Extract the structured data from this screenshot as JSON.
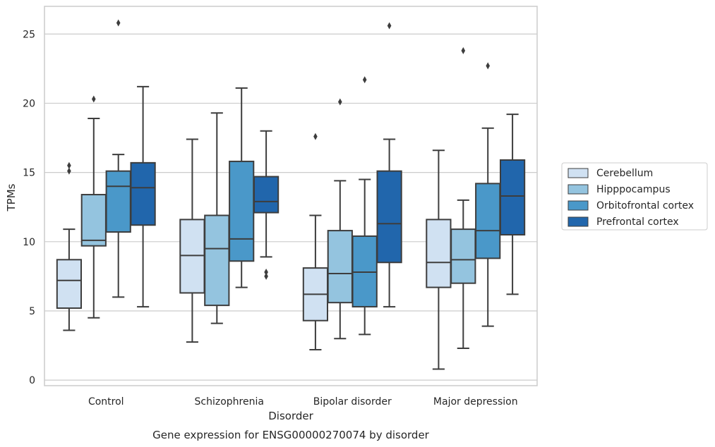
{
  "chart_data": {
    "type": "box",
    "caption": "Gene expression for ENSG00000270074 by disorder",
    "xlabel": "Disorder",
    "ylabel": "TPMs",
    "ylim": [
      -0.4,
      27
    ],
    "yticks": [
      0,
      5,
      10,
      15,
      20,
      25
    ],
    "grid": "horizontal",
    "legend_position": "right",
    "categories": [
      "Control",
      "Schizophrenia",
      "Bipolar disorder",
      "Major depression"
    ],
    "series": [
      {
        "name": "Cerebellum",
        "color": "#d0e1f2",
        "boxes": [
          {
            "whislo": 3.6,
            "q1": 5.2,
            "med": 7.2,
            "q3": 8.7,
            "whishi": 10.9,
            "fliers": [
              15.1,
              15.5
            ]
          },
          {
            "whislo": 2.75,
            "q1": 6.3,
            "med": 9.0,
            "q3": 11.6,
            "whishi": 17.4,
            "fliers": []
          },
          {
            "whislo": 2.2,
            "q1": 4.3,
            "med": 6.2,
            "q3": 8.1,
            "whishi": 11.9,
            "fliers": [
              17.6
            ]
          },
          {
            "whislo": 0.8,
            "q1": 6.7,
            "med": 8.5,
            "q3": 11.6,
            "whishi": 16.6,
            "fliers": []
          }
        ]
      },
      {
        "name": "Hipppocampus",
        "color": "#94c4df",
        "boxes": [
          {
            "whislo": 4.5,
            "q1": 9.7,
            "med": 10.1,
            "q3": 13.4,
            "whishi": 18.9,
            "fliers": [
              20.3
            ]
          },
          {
            "whislo": 4.1,
            "q1": 5.4,
            "med": 9.5,
            "q3": 11.9,
            "whishi": 19.3,
            "fliers": []
          },
          {
            "whislo": 3.0,
            "q1": 5.6,
            "med": 7.7,
            "q3": 10.8,
            "whishi": 14.4,
            "fliers": [
              20.1
            ]
          },
          {
            "whislo": 2.3,
            "q1": 7.0,
            "med": 8.7,
            "q3": 10.9,
            "whishi": 13.0,
            "fliers": [
              23.8
            ]
          }
        ]
      },
      {
        "name": "Orbitofrontal cortex",
        "color": "#4a98c9",
        "boxes": [
          {
            "whislo": 6.0,
            "q1": 10.7,
            "med": 14.0,
            "q3": 15.1,
            "whishi": 16.3,
            "fliers": [
              25.8
            ]
          },
          {
            "whislo": 6.7,
            "q1": 8.6,
            "med": 10.2,
            "q3": 15.8,
            "whishi": 21.1,
            "fliers": []
          },
          {
            "whislo": 3.3,
            "q1": 5.3,
            "med": 7.8,
            "q3": 10.4,
            "whishi": 14.5,
            "fliers": [
              21.7
            ]
          },
          {
            "whislo": 3.9,
            "q1": 8.8,
            "med": 10.8,
            "q3": 14.2,
            "whishi": 18.2,
            "fliers": [
              22.7
            ]
          }
        ]
      },
      {
        "name": "Prefrontal cortex",
        "color": "#2166ac",
        "boxes": [
          {
            "whislo": 5.3,
            "q1": 11.2,
            "med": 13.9,
            "q3": 15.7,
            "whishi": 21.2,
            "fliers": []
          },
          {
            "whislo": 8.9,
            "q1": 12.1,
            "med": 12.9,
            "q3": 14.7,
            "whishi": 18.0,
            "fliers": [
              7.5,
              7.8
            ]
          },
          {
            "whislo": 5.3,
            "q1": 8.5,
            "med": 11.3,
            "q3": 15.1,
            "whishi": 17.4,
            "fliers": [
              25.6
            ]
          },
          {
            "whislo": 6.2,
            "q1": 10.5,
            "med": 13.3,
            "q3": 15.9,
            "whishi": 19.2,
            "fliers": []
          }
        ]
      }
    ]
  }
}
